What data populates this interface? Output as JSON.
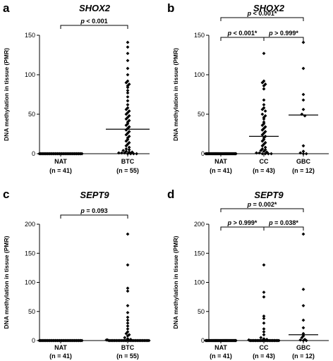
{
  "chart_data": [
    {
      "panel_label": "a",
      "type": "scatter",
      "title": "SHOX2",
      "ylabel": "DNA methylation in tissue (PMR)",
      "ylim": [
        0,
        150
      ],
      "yticks": [
        "0",
        "50",
        "100",
        "150"
      ],
      "categories": [
        {
          "name": "NAT",
          "n": "(n = 41)"
        },
        {
          "name": "BTC",
          "n": "(n = 55)"
        }
      ],
      "series": [
        {
          "values": [
            0,
            0,
            0,
            0,
            0,
            0,
            0,
            0,
            0,
            0,
            0,
            0,
            0,
            0,
            0,
            0,
            0,
            0,
            0,
            0,
            0,
            0,
            0,
            0,
            0,
            0,
            0,
            0,
            0,
            0,
            0,
            0,
            0,
            0,
            0,
            0,
            0,
            0,
            0,
            0,
            0
          ],
          "median": 0
        },
        {
          "values": [
            141,
            135,
            127,
            118,
            108,
            100,
            92,
            90,
            88,
            86,
            84,
            80,
            77,
            72,
            67,
            62,
            58,
            56,
            54,
            52,
            50,
            48,
            46,
            44,
            42,
            40,
            38,
            36,
            34,
            32,
            30,
            28,
            26,
            24,
            22,
            20,
            18,
            16,
            14,
            12,
            10,
            8,
            6,
            5,
            4,
            3,
            2,
            2,
            1,
            1,
            1,
            0,
            0,
            0,
            0
          ],
          "median": 31
        }
      ],
      "comparisons": [
        {
          "text": "p < 0.001",
          "from": 0,
          "to": 1,
          "level": 1
        }
      ]
    },
    {
      "panel_label": "b",
      "type": "scatter",
      "title": "SHOX2",
      "ylabel": "DNA methylation in tissue (PMR)",
      "ylim": [
        0,
        150
      ],
      "yticks": [
        "0",
        "50",
        "100",
        "150"
      ],
      "categories": [
        {
          "name": "NAT",
          "n": "(n = 41)"
        },
        {
          "name": "CC",
          "n": "(n = 43)"
        },
        {
          "name": "GBC",
          "n": "(n = 12)"
        }
      ],
      "series": [
        {
          "values": [
            0,
            0,
            0,
            0,
            0,
            0,
            0,
            0,
            0,
            0,
            0,
            0,
            0,
            0,
            0,
            0,
            0,
            0,
            0,
            0,
            0,
            0,
            0,
            0,
            0,
            0,
            0,
            0,
            0,
            0,
            0,
            0,
            0,
            0,
            0,
            0,
            0,
            0,
            0,
            0,
            0
          ],
          "median": 0
        },
        {
          "values": [
            127,
            92,
            90,
            88,
            86,
            82,
            68,
            62,
            58,
            56,
            54,
            50,
            48,
            46,
            44,
            40,
            38,
            36,
            34,
            32,
            30,
            28,
            26,
            24,
            22,
            20,
            18,
            16,
            14,
            12,
            10,
            8,
            6,
            5,
            4,
            3,
            2,
            1,
            1,
            0,
            0,
            0,
            0
          ],
          "median": 22
        },
        {
          "values": [
            141,
            108,
            75,
            68,
            56,
            50,
            48,
            10,
            3,
            1,
            0,
            0
          ],
          "median": 49
        }
      ],
      "comparisons": [
        {
          "text": "p < 0.001*",
          "from": 0,
          "to": 1,
          "level": 1
        },
        {
          "text": "p > 0.999*",
          "from": 1,
          "to": 2,
          "level": 1
        },
        {
          "text": "p < 0.001*",
          "from": 0,
          "to": 2,
          "level": 2
        }
      ]
    },
    {
      "panel_label": "c",
      "type": "scatter",
      "title": "SEPT9",
      "ylabel": "DNA methylation in tissue (PMR)",
      "ylim": [
        0,
        200
      ],
      "yticks": [
        "0",
        "50",
        "100",
        "150",
        "200"
      ],
      "categories": [
        {
          "name": "NAT",
          "n": "(n = 41)"
        },
        {
          "name": "BTC",
          "n": "(n = 55)"
        }
      ],
      "series": [
        {
          "values": [
            0,
            0,
            0,
            0,
            0,
            0,
            0,
            0,
            0,
            0,
            0,
            0,
            0,
            0,
            0,
            0,
            0,
            0,
            0,
            0,
            0,
            0,
            0,
            0,
            0,
            0,
            0,
            0,
            0,
            0,
            0,
            0,
            0,
            0,
            0,
            0,
            0,
            0,
            0,
            0,
            0
          ],
          "median": 0
        },
        {
          "values": [
            183,
            130,
            90,
            85,
            60,
            48,
            40,
            35,
            30,
            25,
            20,
            15,
            12,
            10,
            8,
            5,
            3,
            2,
            1,
            1,
            0,
            0,
            0,
            0,
            0,
            0,
            0,
            0,
            0,
            0,
            0,
            0,
            0,
            0,
            0,
            0,
            0,
            0,
            0,
            0,
            0,
            0,
            0,
            0,
            0,
            0,
            0,
            0,
            0,
            0,
            0,
            0,
            0,
            0,
            0
          ],
          "median": 0
        }
      ],
      "comparisons": [
        {
          "text": "p = 0.093",
          "from": 0,
          "to": 1,
          "level": 1
        }
      ]
    },
    {
      "panel_label": "d",
      "type": "scatter",
      "title": "SEPT9",
      "ylabel": "DNA methylation in tissue (PMR)",
      "ylim": [
        0,
        200
      ],
      "yticks": [
        "0",
        "50",
        "100",
        "150",
        "200"
      ],
      "categories": [
        {
          "name": "NAT",
          "n": "(n = 41)"
        },
        {
          "name": "CC",
          "n": "(n = 43)"
        },
        {
          "name": "GBC",
          "n": "(n = 12)"
        }
      ],
      "series": [
        {
          "values": [
            0,
            0,
            0,
            0,
            0,
            0,
            0,
            0,
            0,
            0,
            0,
            0,
            0,
            0,
            0,
            0,
            0,
            0,
            0,
            0,
            0,
            0,
            0,
            0,
            0,
            0,
            0,
            0,
            0,
            0,
            0,
            0,
            0,
            0,
            0,
            0,
            0,
            0,
            0,
            0,
            0
          ],
          "median": 0
        },
        {
          "values": [
            130,
            83,
            75,
            42,
            38,
            30,
            20,
            15,
            10,
            5,
            3,
            2,
            1,
            0,
            0,
            0,
            0,
            0,
            0,
            0,
            0,
            0,
            0,
            0,
            0,
            0,
            0,
            0,
            0,
            0,
            0,
            0,
            0,
            0,
            0,
            0,
            0,
            0,
            0,
            0,
            0,
            0,
            0
          ],
          "median": 0
        },
        {
          "values": [
            183,
            88,
            60,
            35,
            22,
            12,
            8,
            5,
            2,
            1,
            0,
            0
          ],
          "median": 10
        }
      ],
      "comparisons": [
        {
          "text": "p > 0.999*",
          "from": 0,
          "to": 1,
          "level": 1
        },
        {
          "text": "p = 0.038*",
          "from": 1,
          "to": 2,
          "level": 1
        },
        {
          "text": "p = 0.002*",
          "from": 0,
          "to": 2,
          "level": 2
        }
      ]
    }
  ]
}
